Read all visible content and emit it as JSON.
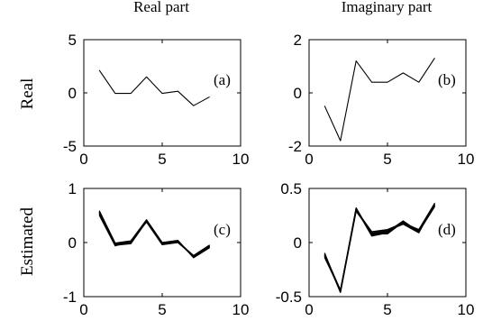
{
  "column_titles": [
    "Real part",
    "Imaginary part"
  ],
  "row_titles": [
    "Real",
    "Estimated"
  ],
  "chart_data": [
    {
      "type": "line",
      "panel_label": "(a)",
      "x": [
        1,
        2,
        3,
        4,
        5,
        6,
        7,
        8
      ],
      "xlim": [
        0,
        10
      ],
      "ylim": [
        -5,
        5
      ],
      "xticks": [
        0,
        5,
        10
      ],
      "yticks": [
        5,
        0,
        -5
      ],
      "xtick_labels": [
        "0",
        "5",
        "10"
      ],
      "ytick_labels": [
        "5",
        "0",
        "-5"
      ],
      "series": [
        {
          "values": [
            2.1,
            -0.05,
            -0.05,
            1.5,
            -0.05,
            0.15,
            -1.2,
            -0.4
          ]
        }
      ]
    },
    {
      "type": "line",
      "panel_label": "(b)",
      "x": [
        1,
        2,
        3,
        4,
        5,
        6,
        7,
        8
      ],
      "xlim": [
        0,
        10
      ],
      "ylim": [
        -2,
        2
      ],
      "xticks": [
        0,
        5,
        10
      ],
      "yticks": [
        2,
        0,
        -2
      ],
      "xtick_labels": [
        "0",
        "5",
        "10"
      ],
      "ytick_labels": [
        "2",
        "0",
        "-2"
      ],
      "series": [
        {
          "values": [
            -0.5,
            -1.8,
            1.2,
            0.4,
            0.4,
            0.75,
            0.4,
            1.3
          ]
        }
      ]
    },
    {
      "type": "line",
      "panel_label": "(c)",
      "x": [
        1,
        2,
        3,
        4,
        5,
        6,
        7,
        8
      ],
      "xlim": [
        0,
        10
      ],
      "ylim": [
        -1,
        1
      ],
      "xticks": [
        0,
        5,
        10
      ],
      "yticks": [
        1,
        0,
        -1
      ],
      "xtick_labels": [
        "0",
        "5",
        "10"
      ],
      "ytick_labels": [
        "1",
        "0",
        "-1"
      ],
      "series": [
        {
          "values": [
            0.55,
            -0.03,
            0.0,
            0.4,
            -0.02,
            0.02,
            -0.27,
            -0.08
          ]
        },
        {
          "values": [
            0.5,
            -0.06,
            0.02,
            0.38,
            -0.04,
            0.0,
            -0.25,
            -0.06
          ]
        },
        {
          "values": [
            0.58,
            -0.01,
            0.03,
            0.42,
            0.0,
            0.04,
            -0.28,
            -0.1
          ]
        },
        {
          "values": [
            0.52,
            -0.05,
            -0.02,
            0.39,
            -0.03,
            0.03,
            -0.26,
            -0.07
          ]
        },
        {
          "values": [
            0.56,
            -0.02,
            0.01,
            0.41,
            -0.01,
            0.01,
            -0.24,
            -0.05
          ]
        },
        {
          "values": [
            0.54,
            -0.04,
            0.02,
            0.4,
            -0.02,
            0.03,
            -0.27,
            -0.09
          ]
        }
      ]
    },
    {
      "type": "line",
      "panel_label": "(d)",
      "x": [
        1,
        2,
        3,
        4,
        5,
        6,
        7,
        8
      ],
      "xlim": [
        0,
        10
      ],
      "ylim": [
        -0.5,
        0.5
      ],
      "xticks": [
        0,
        5,
        10
      ],
      "yticks": [
        0.5,
        0,
        -0.5
      ],
      "xtick_labels": [
        "0",
        "5",
        "10"
      ],
      "ytick_labels": [
        "0.5",
        "0",
        "-0.5"
      ],
      "series": [
        {
          "values": [
            -0.12,
            -0.45,
            0.3,
            0.08,
            0.1,
            0.18,
            0.1,
            0.35
          ]
        },
        {
          "values": [
            -0.14,
            -0.44,
            0.31,
            0.06,
            0.09,
            0.19,
            0.11,
            0.34
          ]
        },
        {
          "values": [
            -0.1,
            -0.46,
            0.29,
            0.09,
            0.11,
            0.17,
            0.09,
            0.36
          ]
        },
        {
          "values": [
            -0.13,
            -0.45,
            0.32,
            0.07,
            0.1,
            0.2,
            0.1,
            0.33
          ]
        },
        {
          "values": [
            -0.11,
            -0.44,
            0.3,
            0.1,
            0.12,
            0.18,
            0.12,
            0.36
          ]
        },
        {
          "values": [
            -0.12,
            -0.46,
            0.31,
            0.08,
            0.08,
            0.19,
            0.1,
            0.34
          ]
        }
      ]
    }
  ]
}
